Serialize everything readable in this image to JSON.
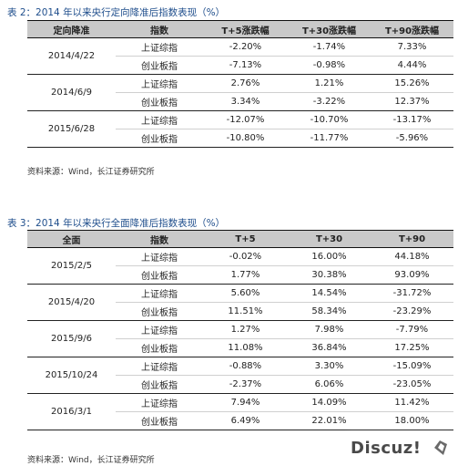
{
  "table1": {
    "caption": "表 2：2014 年以来央行定向降准后指数表现（%）",
    "headers": [
      "定向降准",
      "指数",
      "T+5涨跌幅",
      "T+30涨跌幅",
      "T+90涨跌幅"
    ],
    "groups": [
      {
        "date": "2014/4/22",
        "rows": [
          {
            "index": "上证综指",
            "t5": "-2.20%",
            "t30": "-1.74%",
            "t90": "7.33%"
          },
          {
            "index": "创业板指",
            "t5": "-7.13%",
            "t30": "-0.98%",
            "t90": "4.44%"
          }
        ]
      },
      {
        "date": "2014/6/9",
        "rows": [
          {
            "index": "上证综指",
            "t5": "2.76%",
            "t30": "1.21%",
            "t90": "15.26%"
          },
          {
            "index": "创业板指",
            "t5": "3.34%",
            "t30": "-3.22%",
            "t90": "12.37%"
          }
        ]
      },
      {
        "date": "2015/6/28",
        "rows": [
          {
            "index": "上证综指",
            "t5": "-12.07%",
            "t30": "-10.70%",
            "t90": "-13.17%"
          },
          {
            "index": "创业板指",
            "t5": "-10.80%",
            "t30": "-11.77%",
            "t90": "-5.96%"
          }
        ]
      }
    ],
    "source": "资料来源：Wind，长江证券研究所"
  },
  "table2": {
    "caption": "表 3：2014 年以来央行全面降准后指数表现（%）",
    "headers": [
      "全面",
      "指数",
      "T+5",
      "T+30",
      "T+90"
    ],
    "groups": [
      {
        "date": "2015/2/5",
        "rows": [
          {
            "index": "上证综指",
            "t5": "-0.02%",
            "t30": "16.00%",
            "t90": "44.18%"
          },
          {
            "index": "创业板指",
            "t5": "1.77%",
            "t30": "30.38%",
            "t90": "93.09%"
          }
        ]
      },
      {
        "date": "2015/4/20",
        "rows": [
          {
            "index": "上证综指",
            "t5": "5.60%",
            "t30": "14.54%",
            "t90": "-31.72%"
          },
          {
            "index": "创业板指",
            "t5": "11.51%",
            "t30": "58.34%",
            "t90": "-23.29%"
          }
        ]
      },
      {
        "date": "2015/9/6",
        "rows": [
          {
            "index": "上证综指",
            "t5": "1.27%",
            "t30": "7.98%",
            "t90": "-7.79%"
          },
          {
            "index": "创业板指",
            "t5": "11.08%",
            "t30": "36.84%",
            "t90": "17.25%"
          }
        ]
      },
      {
        "date": "2015/10/24",
        "rows": [
          {
            "index": "上证综指",
            "t5": "-0.88%",
            "t30": "3.30%",
            "t90": "-15.09%"
          },
          {
            "index": "创业板指",
            "t5": "-2.37%",
            "t30": "6.06%",
            "t90": "-23.05%"
          }
        ]
      },
      {
        "date": "2016/3/1",
        "rows": [
          {
            "index": "上证综指",
            "t5": "7.94%",
            "t30": "14.09%",
            "t90": "11.42%"
          },
          {
            "index": "创业板指",
            "t5": "6.49%",
            "t30": "22.01%",
            "t90": "18.00%"
          }
        ]
      }
    ],
    "source": "资料来源：Wind，长江证券研究所"
  },
  "watermark": {
    "text": "Discuz!",
    "icon": "discuz-logo-icon"
  }
}
